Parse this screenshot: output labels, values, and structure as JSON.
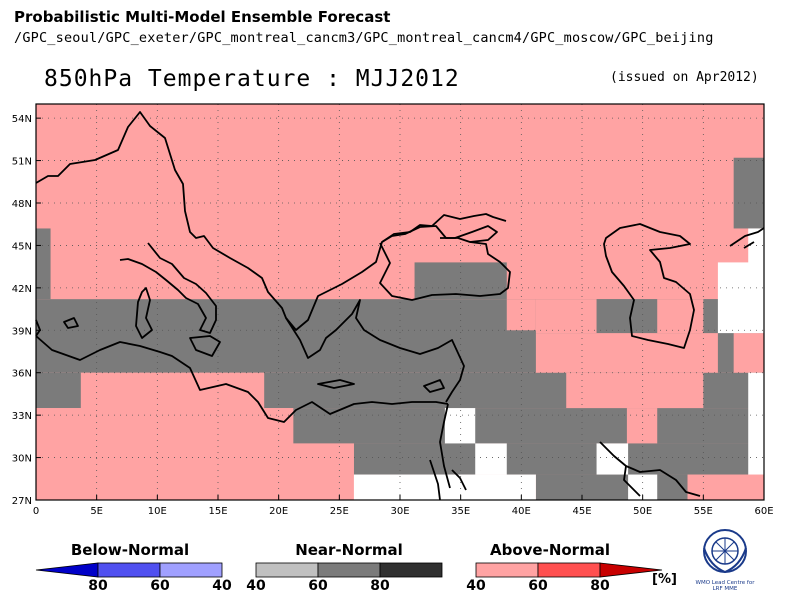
{
  "header": {
    "title": "Probabilistic Multi-Model Ensemble Forecast",
    "models": "/GPC_seoul/GPC_exeter/GPC_montreal_cancm3/GPC_montreal_cancm4/GPC_moscow/GPC_beijing"
  },
  "map": {
    "title": "850hPa Temperature : MJJ2012",
    "issued": "(issued on Apr2012)",
    "lat_labels": [
      "54N",
      "51N",
      "48N",
      "45N",
      "42N",
      "39N",
      "36N",
      "33N",
      "30N",
      "27N"
    ],
    "lon_labels": [
      "0",
      "5E",
      "10E",
      "15E",
      "20E",
      "25E",
      "30E",
      "35E",
      "40E",
      "45E",
      "50E",
      "55E",
      "60E"
    ],
    "extent": {
      "lon_min": 0,
      "lon_max": 60,
      "lat_min": 27,
      "lat_max": 55
    },
    "grid_cell_deg": 2.5,
    "colors": {
      "above": "#ffa3a3",
      "near": "#7b7b7b",
      "none": "#ffffff",
      "coast": "#000000"
    }
  },
  "legend": {
    "below": {
      "title": "Below-Normal",
      "ticks": [
        "80",
        "60",
        "40"
      ],
      "colors": [
        "#0000c8",
        "#5050f0",
        "#a0a0ff"
      ]
    },
    "near": {
      "title": "Near-Normal",
      "ticks": [
        "40",
        "60",
        "80"
      ],
      "colors": [
        "#c0c0c0",
        "#7b7b7b",
        "#303030"
      ]
    },
    "above": {
      "title": "Above-Normal",
      "ticks": [
        "40",
        "60",
        "80"
      ],
      "colors": [
        "#ffa3a3",
        "#ff5050",
        "#c80000"
      ]
    },
    "unit": "[%]"
  },
  "logo": {
    "line1": "WMO Lead Centre for",
    "line2": "LRF MME"
  }
}
